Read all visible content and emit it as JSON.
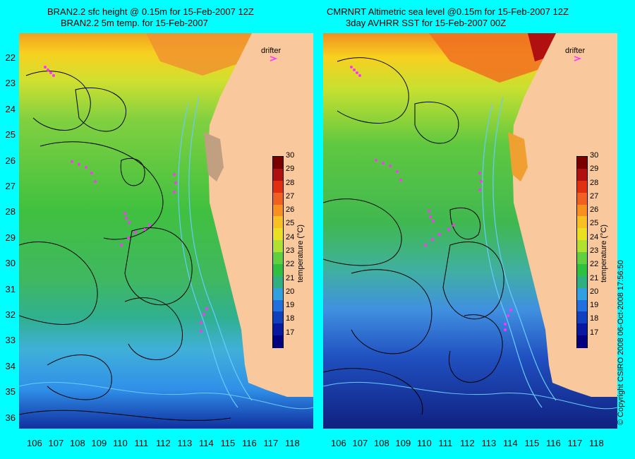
{
  "panels": [
    {
      "title_line1": "BRAN2.2 sfc height @ 0.15m for 15-Feb-2007 12Z",
      "title_line2": "BRAN2.2 5m temp. for 15-Feb-2007",
      "drifter_label": "drifter",
      "colorbar_label": "temperature (°C)"
    },
    {
      "title_line1": "CMRNRT Altimetric sea level  @0.15m  for 15-Feb-2007 12Z",
      "title_line2": "3day AVHRR SST for 15-Feb-2007 00Z",
      "drifter_label": "drifter",
      "colorbar_label": "temperature (°C)"
    }
  ],
  "x_ticks": [
    "106",
    "107",
    "108",
    "109",
    "110",
    "111",
    "112",
    "113",
    "114",
    "115",
    "116",
    "117",
    "118"
  ],
  "y_ticks": [
    "22",
    "23",
    "24",
    "25",
    "26",
    "27",
    "28",
    "29",
    "30",
    "31",
    "32",
    "33",
    "34",
    "35",
    "36"
  ],
  "colorbar_ticks": [
    "30",
    "29",
    "28",
    "27",
    "26",
    "25",
    "24",
    "23",
    "22",
    "21",
    "20",
    "19",
    "18",
    "17"
  ],
  "colorbar_range": [
    16,
    30
  ],
  "copyright": "© Copyright CSIRO 2008    06-Oct-2008 17:56:50",
  "colors": {
    "background": "#00ffff",
    "land": "#f9c89c",
    "drifter": "#ff33ff",
    "contour": "#000000",
    "coast_contour": "#66ccff"
  }
}
